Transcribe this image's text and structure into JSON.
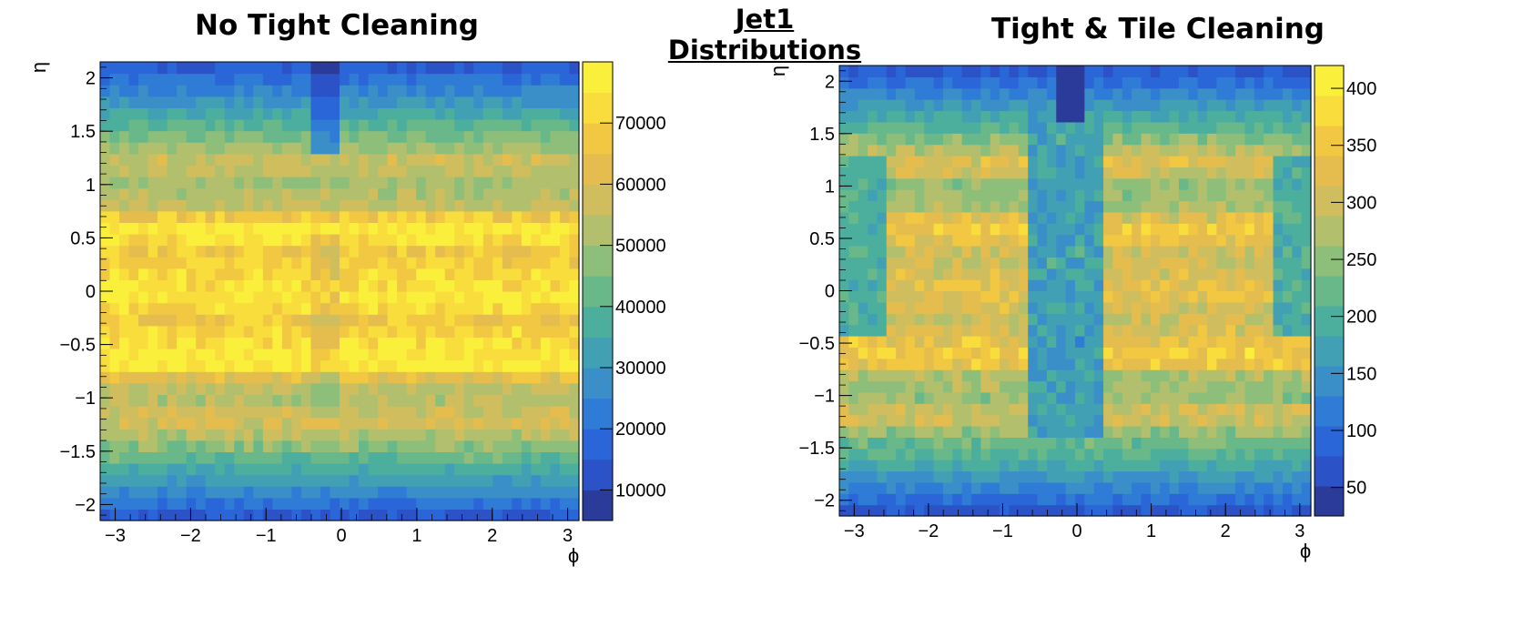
{
  "page": {
    "title": "Jet1 Distributions"
  },
  "chart_data": [
    {
      "type": "heatmap",
      "title": "No Tight Cleaning",
      "xlabel": "ϕ",
      "ylabel": "η",
      "xlim": [
        -3.2,
        3.15
      ],
      "ylim": [
        -2.15,
        2.15
      ],
      "xticks": [
        -3,
        -2,
        -1,
        0,
        1,
        2,
        3
      ],
      "xtick_labels": [
        "−3",
        "−2",
        "−1",
        "0",
        "1",
        "2",
        "3"
      ],
      "yticks": [
        2,
        1.5,
        1,
        0.5,
        0,
        -0.5,
        -1,
        -1.5,
        -2
      ],
      "ytick_labels": [
        "2",
        "1.5",
        "1",
        "0.5",
        "0",
        "−0.5",
        "−1",
        "−1.5",
        "−2"
      ],
      "zlim": [
        5000,
        80000
      ],
      "zticks": [
        70000,
        60000,
        50000,
        40000,
        30000,
        20000,
        10000
      ],
      "ztick_labels": [
        "70000",
        "60000",
        "50000",
        "40000",
        "30000",
        "20000",
        "10000"
      ],
      "bins": {
        "x": 50,
        "y": 40
      },
      "eta_profile": [
        [
          -2.15,
          12000
        ],
        [
          -2.0,
          20000
        ],
        [
          -1.85,
          28000
        ],
        [
          -1.6,
          40000
        ],
        [
          -1.4,
          50000
        ],
        [
          -1.2,
          60000
        ],
        [
          -1.0,
          52000
        ],
        [
          -0.85,
          56000
        ],
        [
          -0.7,
          78000
        ],
        [
          -0.45,
          73000
        ],
        [
          -0.25,
          66000
        ],
        [
          -0.05,
          77000
        ],
        [
          0.15,
          72000
        ],
        [
          0.35,
          67000
        ],
        [
          0.6,
          78000
        ],
        [
          0.8,
          56000
        ],
        [
          1.0,
          50000
        ],
        [
          1.2,
          58000
        ],
        [
          1.4,
          48000
        ],
        [
          1.6,
          38000
        ],
        [
          1.8,
          28000
        ],
        [
          2.0,
          20000
        ],
        [
          2.15,
          13000
        ]
      ],
      "features": [
        {
          "region": "phi≈-0.2, η 1.3–2.15",
          "description": "vertical low-count stripe",
          "factor": 0.55
        },
        {
          "region": "phi≈-0.2, η -1.2–0.5",
          "description": "slightly reduced column",
          "factor": 0.9
        }
      ]
    },
    {
      "type": "heatmap",
      "title": "Tight & Tile Cleaning",
      "xlabel": "ϕ",
      "ylabel": "η",
      "xlim": [
        -3.2,
        3.15
      ],
      "ylim": [
        -2.15,
        2.15
      ],
      "xticks": [
        -3,
        -2,
        -1,
        0,
        1,
        2,
        3
      ],
      "xtick_labels": [
        "−3",
        "−2",
        "−1",
        "0",
        "1",
        "2",
        "3"
      ],
      "yticks": [
        2,
        1.5,
        1,
        0.5,
        0,
        -0.5,
        -1,
        -1.5,
        -2
      ],
      "ytick_labels": [
        "2",
        "1.5",
        "1",
        "0.5",
        "0",
        "−0.5",
        "−1",
        "−1.5",
        "−2"
      ],
      "zlim": [
        25,
        420
      ],
      "zticks": [
        400,
        350,
        300,
        250,
        200,
        150,
        100,
        50
      ],
      "ztick_labels": [
        "400",
        "350",
        "300",
        "250",
        "200",
        "150",
        "100",
        "50"
      ],
      "bins": {
        "x": 50,
        "y": 40
      },
      "eta_profile": [
        [
          -2.15,
          60
        ],
        [
          -2.0,
          100
        ],
        [
          -1.8,
          150
        ],
        [
          -1.6,
          200
        ],
        [
          -1.4,
          230
        ],
        [
          -1.2,
          320
        ],
        [
          -1.0,
          250
        ],
        [
          -0.8,
          280
        ],
        [
          -0.65,
          370
        ],
        [
          -0.45,
          330
        ],
        [
          -0.25,
          300
        ],
        [
          -0.05,
          330
        ],
        [
          0.15,
          320
        ],
        [
          0.35,
          300
        ],
        [
          0.6,
          360
        ],
        [
          0.8,
          270
        ],
        [
          1.0,
          250
        ],
        [
          1.2,
          330
        ],
        [
          1.4,
          260
        ],
        [
          1.6,
          200
        ],
        [
          1.8,
          150
        ],
        [
          2.0,
          100
        ],
        [
          2.15,
          70
        ]
      ],
      "features": [
        {
          "region": "phi -0.6–0.4, η -1.4–2.15",
          "description": "low-count vertical band (tile cleaning gap)",
          "value": 160
        },
        {
          "region": "phi |x|>2.6, η -0.4–1.3",
          "description": "reduced outer columns",
          "value": 190
        },
        {
          "region": "phi≈0, η 1.6–2.15",
          "description": "deep low-count notch",
          "value": 40
        }
      ]
    }
  ]
}
